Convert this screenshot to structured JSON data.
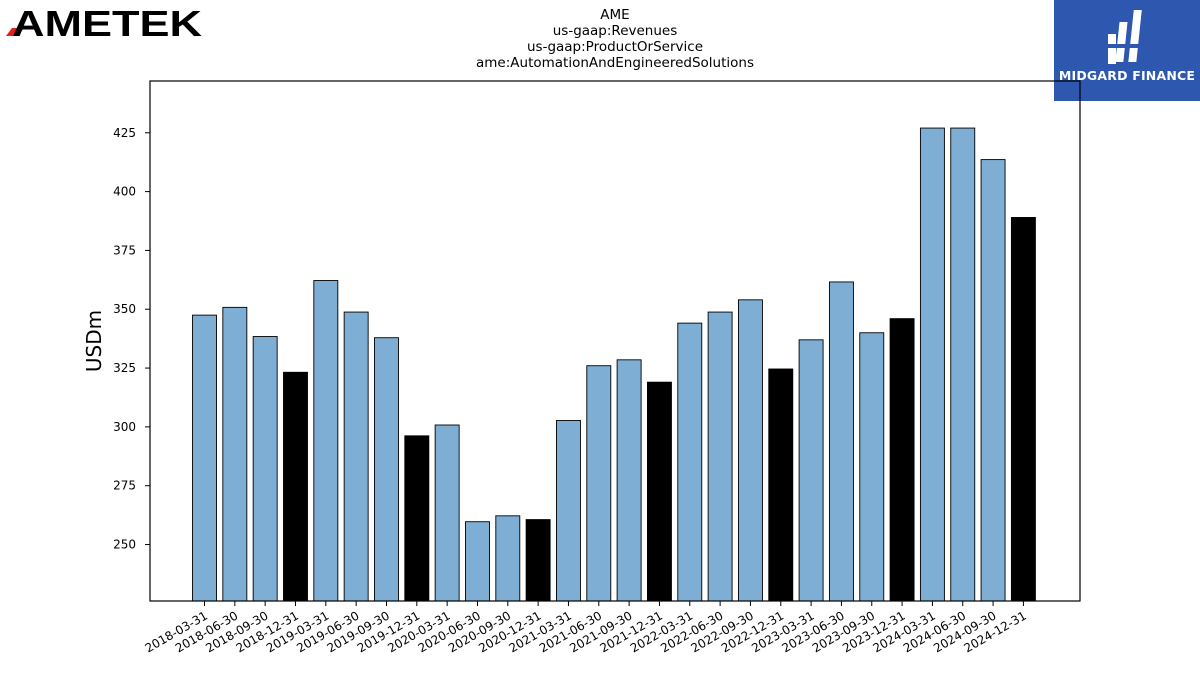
{
  "logos": {
    "left_text": "AMETEK",
    "right_text": "MIDGARD FINANCE"
  },
  "colors": {
    "bar_quarter": "#7eaed3",
    "bar_year_end": "#000000",
    "edge": "#000000",
    "ametek_red": "#e02020",
    "midgard_blue": "#2e58b0"
  },
  "chart_data": {
    "type": "bar",
    "title": [
      "AME",
      "us-gaap:Revenues",
      "us-gaap:ProductOrService",
      "ame:AutomationAndEngineeredSolutions"
    ],
    "xlabel": "",
    "ylabel": "USDm",
    "ylim": [
      226,
      447
    ],
    "yticks": [
      250,
      275,
      300,
      325,
      350,
      375,
      400,
      425
    ],
    "grid": false,
    "categories": [
      "2018-03-31",
      "2018-06-30",
      "2018-09-30",
      "2018-12-31",
      "2019-03-31",
      "2019-06-30",
      "2019-09-30",
      "2019-12-31",
      "2020-03-31",
      "2020-06-30",
      "2020-09-30",
      "2020-12-31",
      "2021-03-31",
      "2021-06-30",
      "2021-09-30",
      "2021-12-31",
      "2022-03-31",
      "2022-06-30",
      "2022-09-30",
      "2022-12-31",
      "2023-03-31",
      "2023-06-30",
      "2023-09-30",
      "2023-12-31",
      "2024-03-31",
      "2024-06-30",
      "2024-09-30",
      "2024-12-31"
    ],
    "values": [
      347.5,
      350.8,
      338.4,
      323.2,
      362.2,
      348.8,
      337.9,
      296.2,
      300.8,
      259.7,
      262.2,
      260.6,
      302.7,
      326.0,
      328.5,
      319.0,
      344.1,
      348.8,
      354.0,
      324.6,
      337.0,
      361.6,
      340.0,
      346.0,
      427.0,
      427.0,
      413.6,
      389.0
    ],
    "year_end": [
      false,
      false,
      false,
      true,
      false,
      false,
      false,
      true,
      false,
      false,
      false,
      true,
      false,
      false,
      false,
      true,
      false,
      false,
      false,
      true,
      false,
      false,
      false,
      true,
      false,
      false,
      false,
      true
    ]
  }
}
